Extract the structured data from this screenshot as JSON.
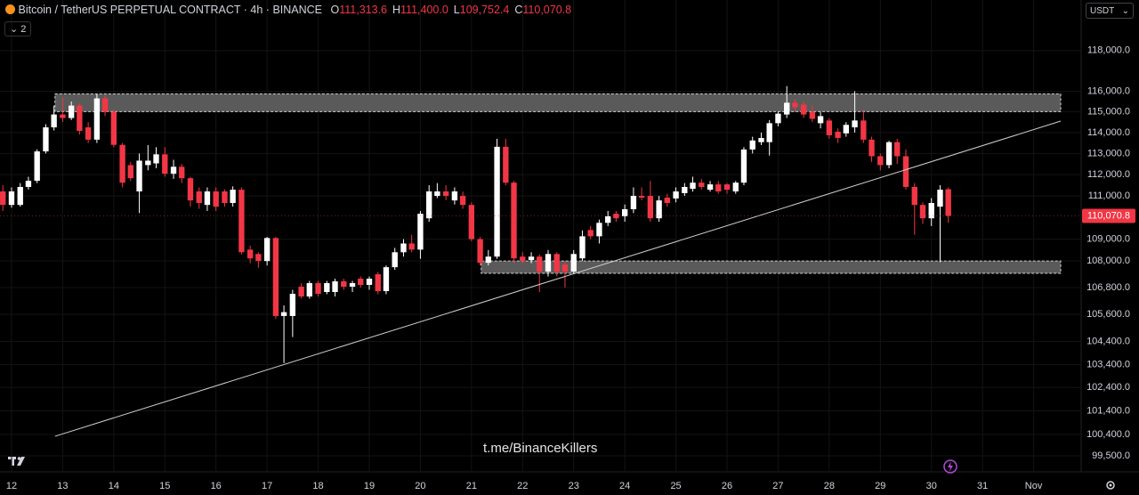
{
  "chart_data": {
    "type": "candlestick",
    "title": "Bitcoin / TetherUS PERPETUAL CONTRACT · 4h · BINANCE",
    "ohlc": [
      {
        "key": "O",
        "value": "111,313.6"
      },
      {
        "key": "H",
        "value": "111,400.0"
      },
      {
        "key": "L",
        "value": "109,752.4"
      },
      {
        "key": "C",
        "value": "110,070.8"
      }
    ],
    "indicator_count": "2",
    "currency": "USDT",
    "watermark": "t.me/BinanceKillers",
    "log_scale": true,
    "grid": true,
    "up_color": "#ffffff",
    "down_color": "#f23645",
    "zone_color": "#5a5a5a",
    "trendline_color": "#cfcfcf",
    "xlim": [
      11.774,
      32.93
    ],
    "ylim": [
      98830,
      120540
    ],
    "xticks": [
      12,
      13,
      14,
      15,
      16,
      17,
      18,
      19,
      20,
      21,
      22,
      23,
      24,
      25,
      26,
      27,
      28,
      29,
      30,
      31,
      {
        "value": 32,
        "label": "Nov"
      }
    ],
    "yticks": [
      {
        "value": 118000,
        "label": "118,000.0"
      },
      {
        "value": 116000,
        "label": "116,000.0"
      },
      {
        "value": 115000,
        "label": "115,000.0"
      },
      {
        "value": 114000,
        "label": "114,000.0"
      },
      {
        "value": 113000,
        "label": "113,000.0"
      },
      {
        "value": 112000,
        "label": "112,000.0"
      },
      {
        "value": 111000,
        "label": "111,000.0"
      },
      {
        "value": 109000,
        "label": "109,000.0"
      },
      {
        "value": 108000,
        "label": "108,000.0"
      },
      {
        "value": 106800,
        "label": "106,800.0"
      },
      {
        "value": 105600,
        "label": "105,600.0"
      },
      {
        "value": 104400,
        "label": "104,400.0"
      },
      {
        "value": 103400,
        "label": "103,400.0"
      },
      {
        "value": 102400,
        "label": "102,400.0"
      },
      {
        "value": 101400,
        "label": "101,400.0"
      },
      {
        "value": 100400,
        "label": "100,400.0"
      },
      {
        "value": 99500,
        "label": "99,500.0"
      }
    ],
    "last_price": {
      "value": 110070.8,
      "label": "110,070.8"
    },
    "zones": [
      {
        "x": [
          12.85,
          32.53
        ],
        "y": [
          115010,
          115870
        ]
      },
      {
        "x": [
          21.19,
          32.53
        ],
        "y": [
          107440,
          108000
        ]
      }
    ],
    "trendline": {
      "x": [
        12.85,
        32.53
      ],
      "y": [
        100320,
        114550
      ]
    },
    "x": [
      11.83,
      12,
      12.17,
      12.33,
      12.5,
      12.67,
      12.83,
      13,
      13.17,
      13.33,
      13.5,
      13.67,
      13.83,
      14,
      14.17,
      14.33,
      14.5,
      14.67,
      14.83,
      15,
      15.17,
      15.33,
      15.5,
      15.67,
      15.83,
      16,
      16.17,
      16.33,
      16.5,
      16.67,
      16.83,
      17,
      17.17,
      17.33,
      17.5,
      17.67,
      17.83,
      18,
      18.17,
      18.33,
      18.5,
      18.67,
      18.83,
      19,
      19.17,
      19.33,
      19.5,
      19.67,
      19.83,
      20,
      20.17,
      20.33,
      20.5,
      20.67,
      20.83,
      21,
      21.17,
      21.33,
      21.5,
      21.67,
      21.83,
      22,
      22.17,
      22.33,
      22.5,
      22.67,
      22.83,
      23,
      23.17,
      23.33,
      23.5,
      23.67,
      23.83,
      24,
      24.17,
      24.33,
      24.5,
      24.67,
      24.83,
      25,
      25.17,
      25.33,
      25.5,
      25.67,
      25.83,
      26,
      26.17,
      26.33,
      26.5,
      26.67,
      26.83,
      27,
      27.17,
      27.33,
      27.5,
      27.67,
      27.83,
      28,
      28.17,
      28.33,
      28.5,
      28.67,
      28.83,
      29,
      29.17,
      29.33,
      29.5,
      29.67,
      29.83,
      30,
      30.17,
      30.33
    ],
    "open": [
      111210,
      110580,
      110580,
      111420,
      111710,
      113100,
      114250,
      114870,
      114700,
      115300,
      114250,
      113660,
      115650,
      115000,
      113410,
      112450,
      111210,
      112450,
      112530,
      112960,
      112040,
      112370,
      111830,
      111210,
      110580,
      111210,
      111210,
      110670,
      111290,
      108520,
      108320,
      108000,
      109050,
      105530,
      105530,
      106840,
      106400,
      107000,
      106600,
      106600,
      107080,
      106840,
      107200,
      106920,
      107400,
      106640,
      107720,
      108400,
      108800,
      108520,
      109960,
      111000,
      111210,
      110790,
      111000,
      110580,
      109000,
      107920,
      108200,
      113320,
      111620,
      108200,
      108040,
      108200,
      107520,
      108320,
      107840,
      107520,
      108120,
      109420,
      109130,
      109750,
      110170,
      110050,
      110380,
      111000,
      111000,
      109960,
      110920,
      110880,
      111130,
      111330,
      111620,
      111290,
      111540,
      111540,
      111210,
      111620,
      113190,
      113540,
      113540,
      114450,
      114870,
      115440,
      115350,
      115000,
      114450,
      114580,
      114040,
      113960,
      114250,
      114580,
      113660,
      112870,
      112450,
      113540,
      112870,
      111420,
      110580,
      109960,
      110500,
      111313.6
    ],
    "high": [
      111500,
      111400,
      111600,
      111900,
      113200,
      114400,
      115300,
      115700,
      115500,
      115400,
      114500,
      115850,
      115800,
      115100,
      113500,
      112600,
      113000,
      113400,
      113300,
      113300,
      112700,
      112500,
      111900,
      111400,
      111400,
      111400,
      111300,
      111450,
      111400,
      108700,
      108400,
      109100,
      109100,
      106000,
      106700,
      107000,
      107100,
      107100,
      107100,
      107200,
      107200,
      107100,
      107300,
      107300,
      107500,
      107800,
      108600,
      109000,
      109200,
      110300,
      111500,
      111600,
      111500,
      111400,
      111200,
      110700,
      109100,
      108500,
      113700,
      113700,
      111700,
      108400,
      108400,
      108300,
      108500,
      108400,
      108000,
      108500,
      109400,
      109600,
      109900,
      110300,
      110300,
      110600,
      111400,
      111400,
      111700,
      111000,
      111100,
      111400,
      111600,
      111900,
      111800,
      111700,
      111700,
      111600,
      111700,
      113300,
      113800,
      114000,
      114600,
      115000,
      116250,
      115600,
      115500,
      115300,
      115000,
      114700,
      114200,
      114500,
      116000,
      115100,
      113800,
      113000,
      113600,
      113700,
      113200,
      111600,
      110700,
      110900,
      111500,
      111400
    ],
    "low": [
      110300,
      110450,
      110500,
      111300,
      111600,
      113000,
      114100,
      114500,
      114600,
      113900,
      113500,
      113500,
      114800,
      113300,
      111400,
      111700,
      110200,
      112200,
      112300,
      111900,
      111800,
      111600,
      110500,
      110400,
      110300,
      110300,
      110500,
      110500,
      108300,
      107900,
      107700,
      107800,
      105400,
      103460,
      104600,
      106300,
      106300,
      106400,
      106500,
      106400,
      106700,
      106600,
      106800,
      106700,
      106500,
      106500,
      107600,
      108200,
      108400,
      108100,
      109800,
      110900,
      110800,
      110600,
      110400,
      108900,
      107800,
      107800,
      108100,
      111500,
      107900,
      107900,
      107900,
      106600,
      107300,
      107300,
      106800,
      107400,
      108000,
      109000,
      108800,
      109600,
      109800,
      109800,
      110200,
      110800,
      109800,
      109800,
      110500,
      110700,
      111000,
      111200,
      111300,
      111200,
      111100,
      111100,
      111100,
      111500,
      113000,
      113400,
      112900,
      114300,
      114700,
      115000,
      114700,
      114500,
      114200,
      113700,
      113500,
      113800,
      114000,
      113500,
      112600,
      112200,
      112300,
      112500,
      111300,
      109200,
      109700,
      109600,
      107950,
      109752.4
    ],
    "close": [
      110580,
      111210,
      111420,
      111710,
      113100,
      114250,
      114870,
      114700,
      115300,
      114080,
      113660,
      115650,
      115000,
      113410,
      111620,
      111830,
      112660,
      112660,
      112960,
      112040,
      112370,
      111830,
      110790,
      110670,
      111210,
      110500,
      110670,
      111290,
      108400,
      108120,
      108000,
      109050,
      105530,
      105700,
      106520,
      106400,
      107000,
      106520,
      107000,
      107080,
      106840,
      107000,
      106920,
      107200,
      106640,
      107720,
      108400,
      108800,
      108520,
      110170,
      111210,
      111210,
      111000,
      111210,
      110580,
      109000,
      107920,
      108200,
      113320,
      111620,
      108120,
      108000,
      108200,
      107520,
      108320,
      107520,
      107520,
      108320,
      109130,
      109130,
      109750,
      110050,
      109960,
      110380,
      111000,
      110920,
      109960,
      110790,
      110670,
      111210,
      111420,
      111620,
      111420,
      111540,
      111210,
      111290,
      111620,
      113190,
      113620,
      113740,
      114450,
      114910,
      115440,
      115220,
      114870,
      114660,
      114790,
      113870,
      113740,
      114370,
      114580,
      113660,
      112870,
      112450,
      113540,
      112870,
      111420,
      110580,
      109960,
      110670,
      111290,
      110070.8
    ]
  }
}
